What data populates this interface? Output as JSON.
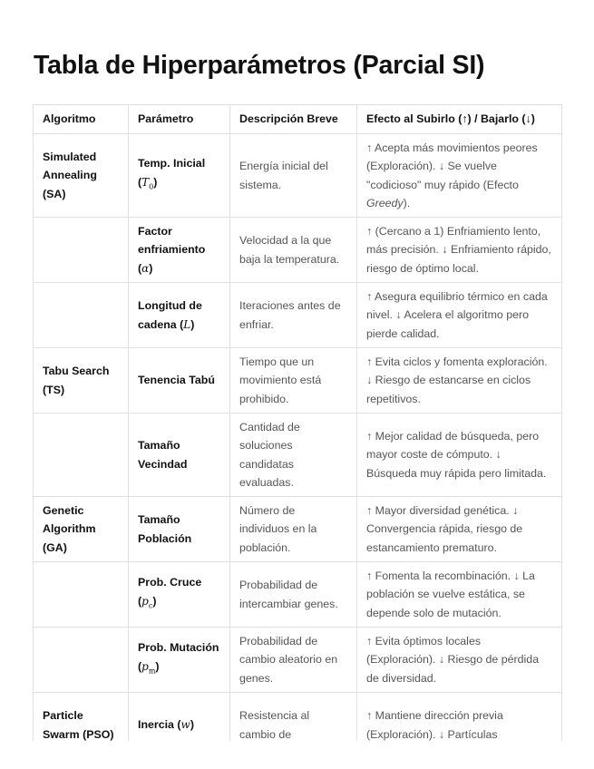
{
  "title": "Tabla de Hiperparámetros (Parcial SI)",
  "headers": [
    "Algoritmo",
    "Parámetro",
    "Descripción Breve",
    "Efecto al Subirlo (↑) / Bajarlo (↓)"
  ],
  "rows": [
    {
      "algorithm": "Simulated Annealing (SA)",
      "param_pre": "Temp. Inicial (",
      "math": "T",
      "sub": "0",
      "param_post": ")",
      "description": "Energía inicial del sistema.",
      "effect": "↑ Acepta más movimientos peores (Exploración). ↓ Se vuelve \"codicioso\" muy rápido (Efecto ",
      "effect_italic": "Greedy",
      "effect_post": ")."
    },
    {
      "algorithm": "",
      "param_pre": "Factor enfriamiento (",
      "math": "α",
      "sub": "",
      "param_post": ")",
      "description": "Velocidad a la que baja la temperatura.",
      "effect": "↑ (Cercano a 1) Enfriamiento lento, más precisión. ↓ Enfriamiento rápido, riesgo de óptimo local."
    },
    {
      "algorithm": "",
      "param_pre": "Longitud de cadena (",
      "math": "L",
      "sub": "",
      "param_post": ")",
      "description": "Iteraciones antes de enfriar.",
      "effect": "↑ Asegura equilibrio térmico en cada nivel. ↓ Acelera el algoritmo pero pierde calidad."
    },
    {
      "algorithm": "Tabu Search (TS)",
      "param_pre": "Tenencia Tabú",
      "description": "Tiempo que un movimiento está prohibido.",
      "effect": "↑ Evita ciclos y fomenta exploración. ↓ Riesgo de estancarse en ciclos repetitivos."
    },
    {
      "algorithm": "",
      "param_pre": "Tamaño Vecindad",
      "description": "Cantidad de soluciones candidatas evaluadas.",
      "effect": "↑ Mejor calidad de búsqueda, pero mayor coste de cómputo. ↓ Búsqueda muy rápida pero limitada."
    },
    {
      "algorithm": "Genetic Algorithm (GA)",
      "param_pre": "Tamaño Población",
      "description": "Número de individuos en la población.",
      "effect": "↑ Mayor diversidad genética. ↓ Convergencia rápida, riesgo de estancamiento prematuro."
    },
    {
      "algorithm": "",
      "param_pre": "Prob. Cruce (",
      "math": "p",
      "sub": "c",
      "param_post": ")",
      "description": "Probabilidad de intercambiar genes.",
      "effect": "↑ Fomenta la recombinación. ↓ La población se vuelve estática, se depende solo de mutación."
    },
    {
      "algorithm": "",
      "param_pre": "Prob. Mutación (",
      "math": "p",
      "sub": "m",
      "param_post": ")",
      "description": "Probabilidad de cambio aleatorio en genes.",
      "effect": "↑ Evita óptimos locales (Exploración). ↓ Riesgo de pérdida de diversidad."
    },
    {
      "algorithm": "Particle Swarm (PSO)",
      "param_pre": "Inercia (",
      "math": "w",
      "sub": "",
      "param_post": ")",
      "description": "Resistencia al cambio de",
      "effect": "↑ Mantiene dirección previa (Exploración). ↓ Partículas"
    }
  ]
}
